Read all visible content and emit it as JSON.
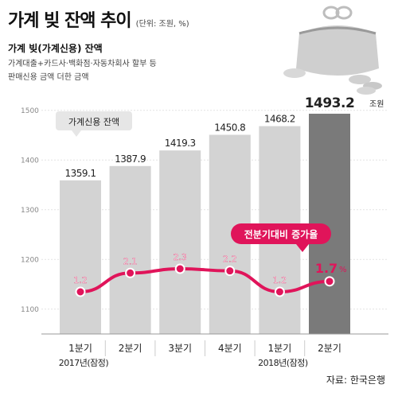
{
  "header": {
    "title": "가계 빚 잔액 추이",
    "unit": "(단위: 조원, %)"
  },
  "legend": {
    "title": "가계 빚(가계신용) 잔액",
    "lines": [
      "가계대출+카드사·백화점·자동차회사 할부 등",
      "판매신용 금액 더한 금액"
    ]
  },
  "source": "자료: 한국은행",
  "chart_data": {
    "type": "bar",
    "categories": [
      "1분기",
      "2분기",
      "3분기",
      "4분기",
      "1분기",
      "2분기"
    ],
    "year_labels": [
      "2017년(잠정)",
      "2018년(잠정)"
    ],
    "value_labels": [
      "1359.1",
      "1387.9",
      "1419.3",
      "1450.8",
      "1468.2",
      "1493.2"
    ],
    "last_value_unit": "조원",
    "ylim": [
      1050,
      1530
    ],
    "yticks": [
      1100,
      1200,
      1300,
      1400,
      1500
    ],
    "grid": true,
    "series": [
      {
        "name": "가계신용 잔액",
        "type": "bar",
        "values": [
          1359.1,
          1387.9,
          1419.3,
          1450.8,
          1468.2,
          1493.2
        ]
      },
      {
        "name": "전분기대비 증가율",
        "type": "line",
        "values": [
          1.2,
          2.1,
          2.3,
          2.2,
          1.2,
          1.7
        ],
        "labels": [
          "1.2",
          "2.1",
          "2.3",
          "2.2",
          "1.2",
          "1.7"
        ],
        "last_label_unit": "%"
      }
    ],
    "colors": {
      "bar": "#d3d3d3",
      "bar_highlight": "#7a7a7a",
      "line": "#e0145a",
      "callout_bar": "#e6e6e6",
      "callout_line": "#e0145a"
    }
  }
}
